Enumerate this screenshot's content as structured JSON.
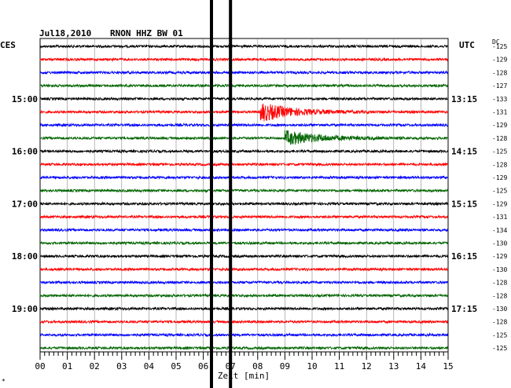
{
  "header": {
    "date": "Jul18,2010",
    "station": "RNON HHZ BW 01",
    "left_tz": "CES",
    "right_tz": "UTC",
    "dc_label": "DC"
  },
  "chart_data": {
    "type": "line",
    "title": "Jul18,2010   RNON HHZ BW 01",
    "xlabel": "Zeit [min]",
    "xlim": [
      0,
      15
    ],
    "x_ticks": [
      "00",
      "01",
      "02",
      "03",
      "04",
      "05",
      "06",
      "07",
      "08",
      "09",
      "10",
      "11",
      "12",
      "13",
      "14",
      "15"
    ],
    "trace_colors": [
      "#000000",
      "#ff0000",
      "#0000ff",
      "#006400"
    ],
    "left_hour_labels": [
      {
        "row": 4,
        "text": "15:00"
      },
      {
        "row": 8,
        "text": "16:00"
      },
      {
        "row": 12,
        "text": "17:00"
      },
      {
        "row": 16,
        "text": "18:00"
      },
      {
        "row": 20,
        "text": "19:00"
      }
    ],
    "right_hour_labels": [
      {
        "row": 4,
        "text": "13:15"
      },
      {
        "row": 8,
        "text": "14:15"
      },
      {
        "row": 12,
        "text": "15:15"
      },
      {
        "row": 16,
        "text": "16:15"
      },
      {
        "row": 20,
        "text": "17:15"
      }
    ],
    "dc_offsets": [
      -125,
      -129,
      -128,
      -127,
      -133,
      -131,
      -129,
      -128,
      -125,
      -128,
      -129,
      -125,
      -129,
      -131,
      -134,
      -130,
      -129,
      -130,
      -128,
      -128,
      -130,
      -128,
      -125,
      -125
    ],
    "events": [
      {
        "row": 5,
        "start_min": 8.1,
        "max_amplitude": 12,
        "decay_min": 3.5
      },
      {
        "row": 7,
        "start_min": 9.0,
        "max_amplitude": 9,
        "decay_min": 4.0
      }
    ],
    "grid": true
  }
}
